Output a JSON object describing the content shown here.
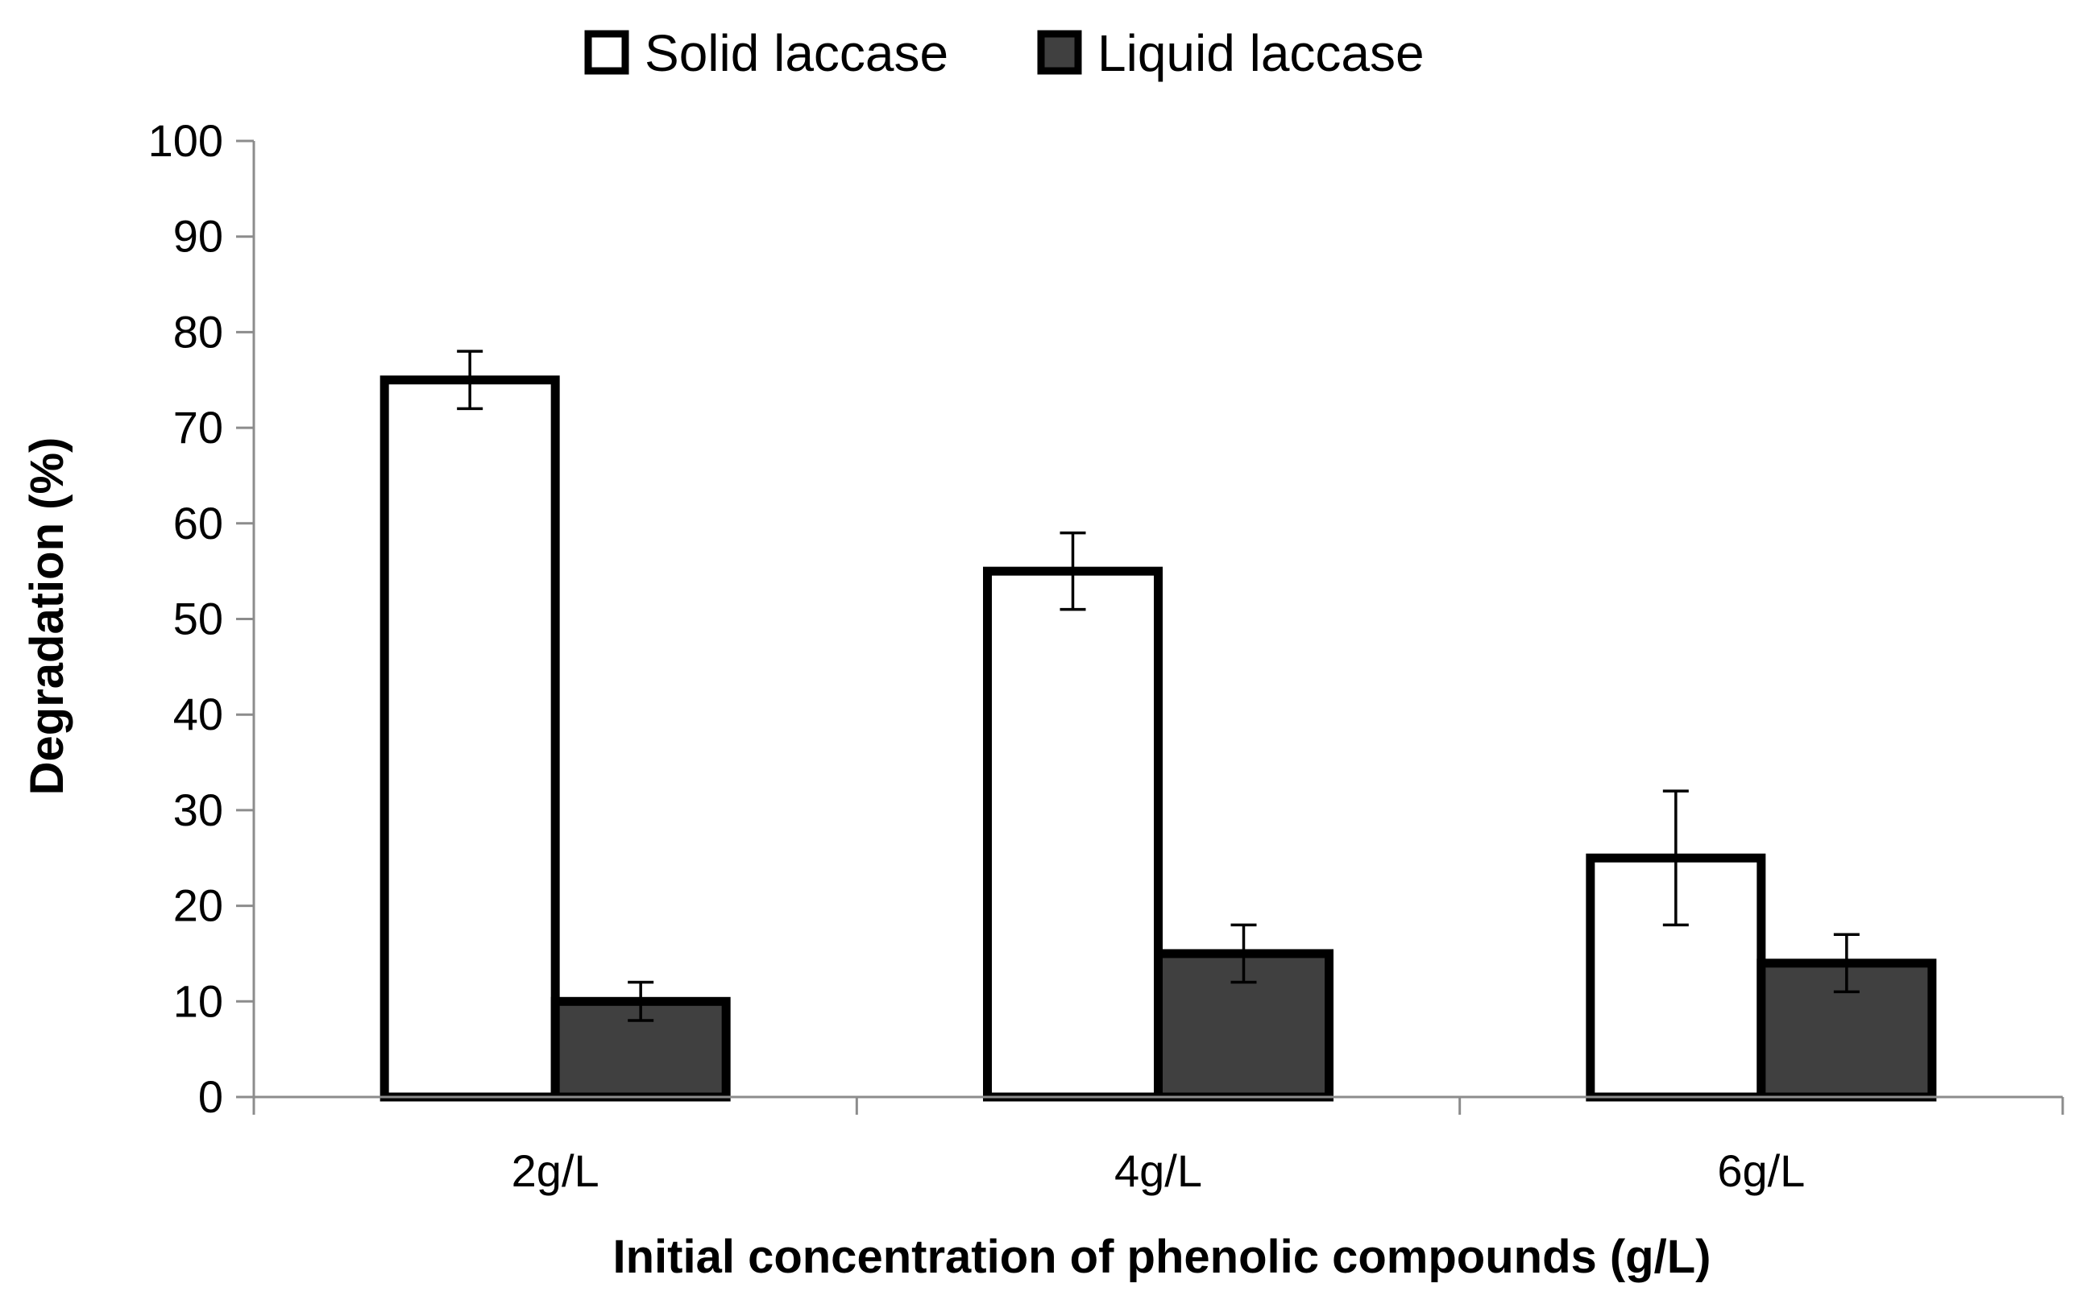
{
  "chart_data": {
    "type": "bar",
    "categories": [
      "2g/L",
      "4g/L",
      "6g/L"
    ],
    "series": [
      {
        "name": "Solid laccase",
        "values": [
          75,
          55,
          25
        ],
        "errors": [
          3,
          4,
          7
        ],
        "color": "#ffffff"
      },
      {
        "name": "Liquid laccase",
        "values": [
          10,
          15,
          14
        ],
        "errors": [
          2,
          3,
          3
        ],
        "color": "#404040"
      }
    ],
    "xlabel": "Initial concentration of phenolic compounds (g/L)",
    "ylabel": "Degradation (%)",
    "ylim": [
      0,
      100
    ],
    "yticks": [
      0,
      10,
      20,
      30,
      40,
      50,
      60,
      70,
      80,
      90,
      100
    ],
    "legend_position": "top-center",
    "grid": false
  }
}
